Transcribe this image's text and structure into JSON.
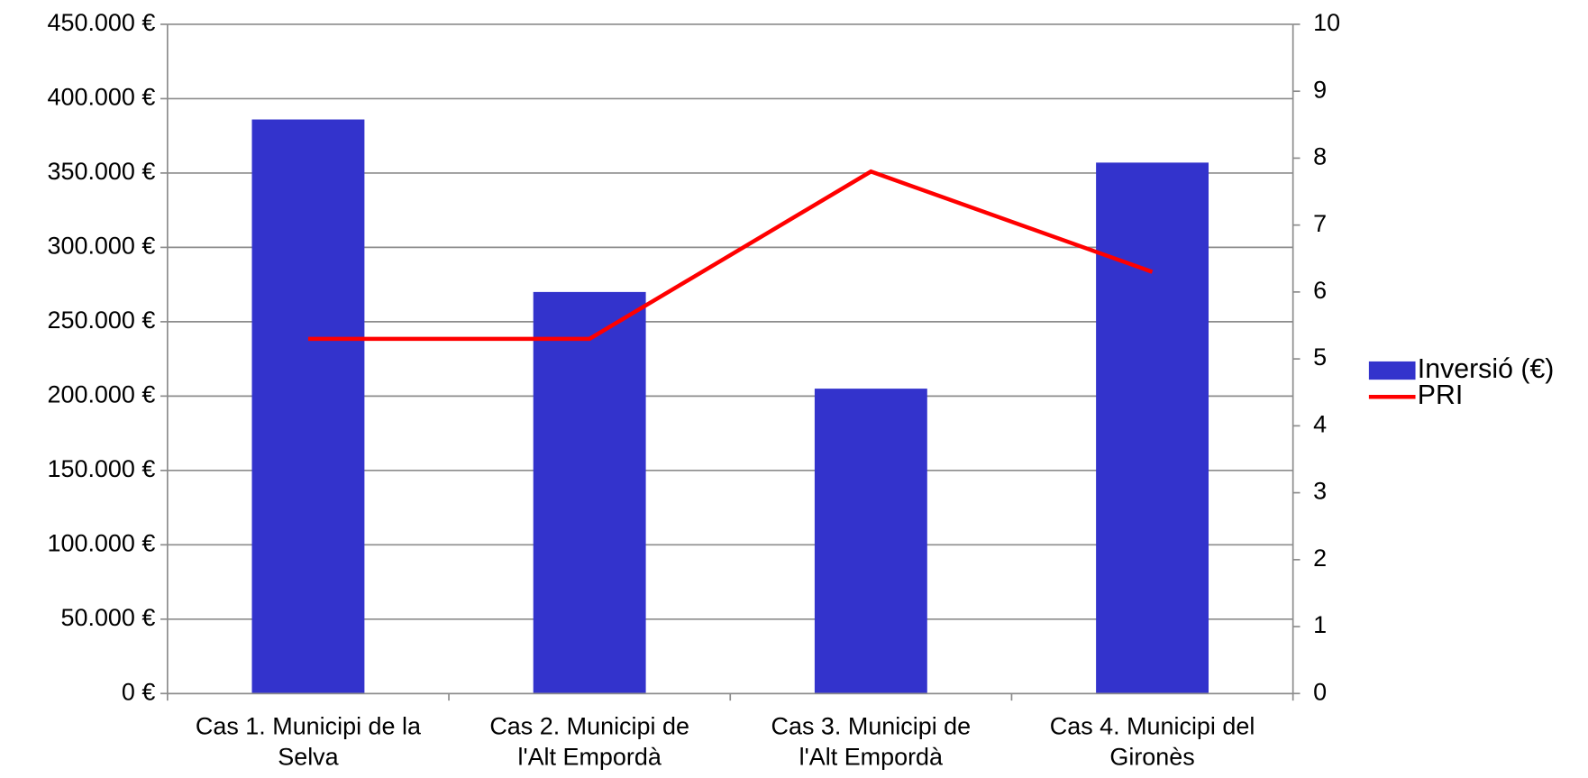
{
  "chart_data": {
    "type": "bar-line",
    "categories": [
      [
        "Cas 1. Municipi de la",
        "Selva"
      ],
      [
        "Cas 2. Municipi de",
        "l'Alt Empordà"
      ],
      [
        "Cas 3. Municipi de",
        "l'Alt Empordà"
      ],
      [
        "Cas 4. Municipi del",
        "Gironès"
      ]
    ],
    "series": [
      {
        "name": "Inversió (€)",
        "type": "bar",
        "color": "#3333cc",
        "values": [
          386000,
          270000,
          205000,
          357000
        ]
      },
      {
        "name": "PRI",
        "type": "line",
        "color": "#ff0000",
        "axis": "y2",
        "values": [
          5.3,
          5.3,
          7.8,
          6.3
        ]
      }
    ],
    "ylim": [
      0,
      450000
    ],
    "yticks": [
      {
        "value": 0,
        "label": "0 €"
      },
      {
        "value": 50000,
        "label": "50.000 €"
      },
      {
        "value": 100000,
        "label": "100.000 €"
      },
      {
        "value": 150000,
        "label": "150.000 €"
      },
      {
        "value": 200000,
        "label": "200.000 €"
      },
      {
        "value": 250000,
        "label": "250.000 €"
      },
      {
        "value": 300000,
        "label": "300.000 €"
      },
      {
        "value": 350000,
        "label": "350.000 €"
      },
      {
        "value": 400000,
        "label": "400.000 €"
      },
      {
        "value": 450000,
        "label": "450.000 €"
      }
    ],
    "y2lim": [
      0,
      10
    ],
    "y2ticks": [
      0,
      1,
      2,
      3,
      4,
      5,
      6,
      7,
      8,
      9,
      10
    ],
    "grid": true,
    "legend": "right"
  }
}
